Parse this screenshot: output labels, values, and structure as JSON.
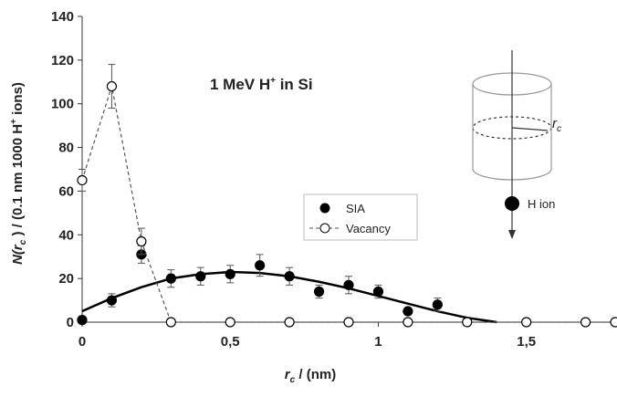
{
  "chart_data": {
    "type": "scatter",
    "annotation": [
      "1 MeV H",
      "+",
      " in Si"
    ],
    "xlabel": [
      "r",
      "c",
      " / (nm)"
    ],
    "ylabel": [
      "N",
      "(r",
      "c",
      " ) / (0.1 nm 1000 H",
      "+",
      " ions)"
    ],
    "xlim": [
      0,
      1.8
    ],
    "ylim": [
      0,
      140
    ],
    "xticks": [
      0,
      {
        "value": 0.5,
        "label": "0,5"
      },
      1,
      {
        "value": 1.5,
        "label": "1,5"
      }
    ],
    "yticks": [
      0,
      20,
      40,
      60,
      80,
      100,
      120,
      140
    ],
    "legend": "center",
    "series": [
      {
        "name": "SIA",
        "color": "#000000",
        "marker": "filled",
        "x": [
          0,
          0.1,
          0.2,
          0.3,
          0.4,
          0.5,
          0.6,
          0.7,
          0.8,
          0.9,
          1.0,
          1.1,
          1.2
        ],
        "values": [
          1,
          10,
          31,
          20,
          21,
          22,
          26,
          21,
          14,
          17,
          14,
          5,
          8
        ],
        "errors": [
          null,
          3,
          4,
          4,
          4,
          4,
          5,
          4,
          3,
          4,
          3,
          null,
          3
        ]
      },
      {
        "name": "Vacancy",
        "color": "#000000",
        "marker": "open",
        "line": "dashed",
        "x": [
          0,
          0.1,
          0.2,
          0.3,
          0.5,
          0.7,
          0.9,
          1.1,
          1.3,
          1.5,
          1.7,
          1.8
        ],
        "values": [
          65,
          108,
          37,
          0,
          0,
          0,
          0,
          0,
          0,
          0,
          0,
          0
        ],
        "errors": [
          5,
          10,
          6,
          null,
          null,
          null,
          null,
          null,
          null,
          null,
          null,
          null
        ]
      }
    ],
    "fit": {
      "x": [
        0,
        0.1,
        0.2,
        0.3,
        0.4,
        0.5,
        0.6,
        0.7,
        0.8,
        0.9,
        1.0,
        1.1,
        1.2,
        1.3,
        1.4
      ],
      "values": [
        5,
        11,
        16,
        20,
        22,
        23,
        22.5,
        21,
        18.5,
        15.5,
        12,
        8.5,
        5,
        2,
        0
      ]
    },
    "inset": {
      "radius_label": [
        "r",
        "c"
      ],
      "ion_label": "H ion"
    }
  }
}
